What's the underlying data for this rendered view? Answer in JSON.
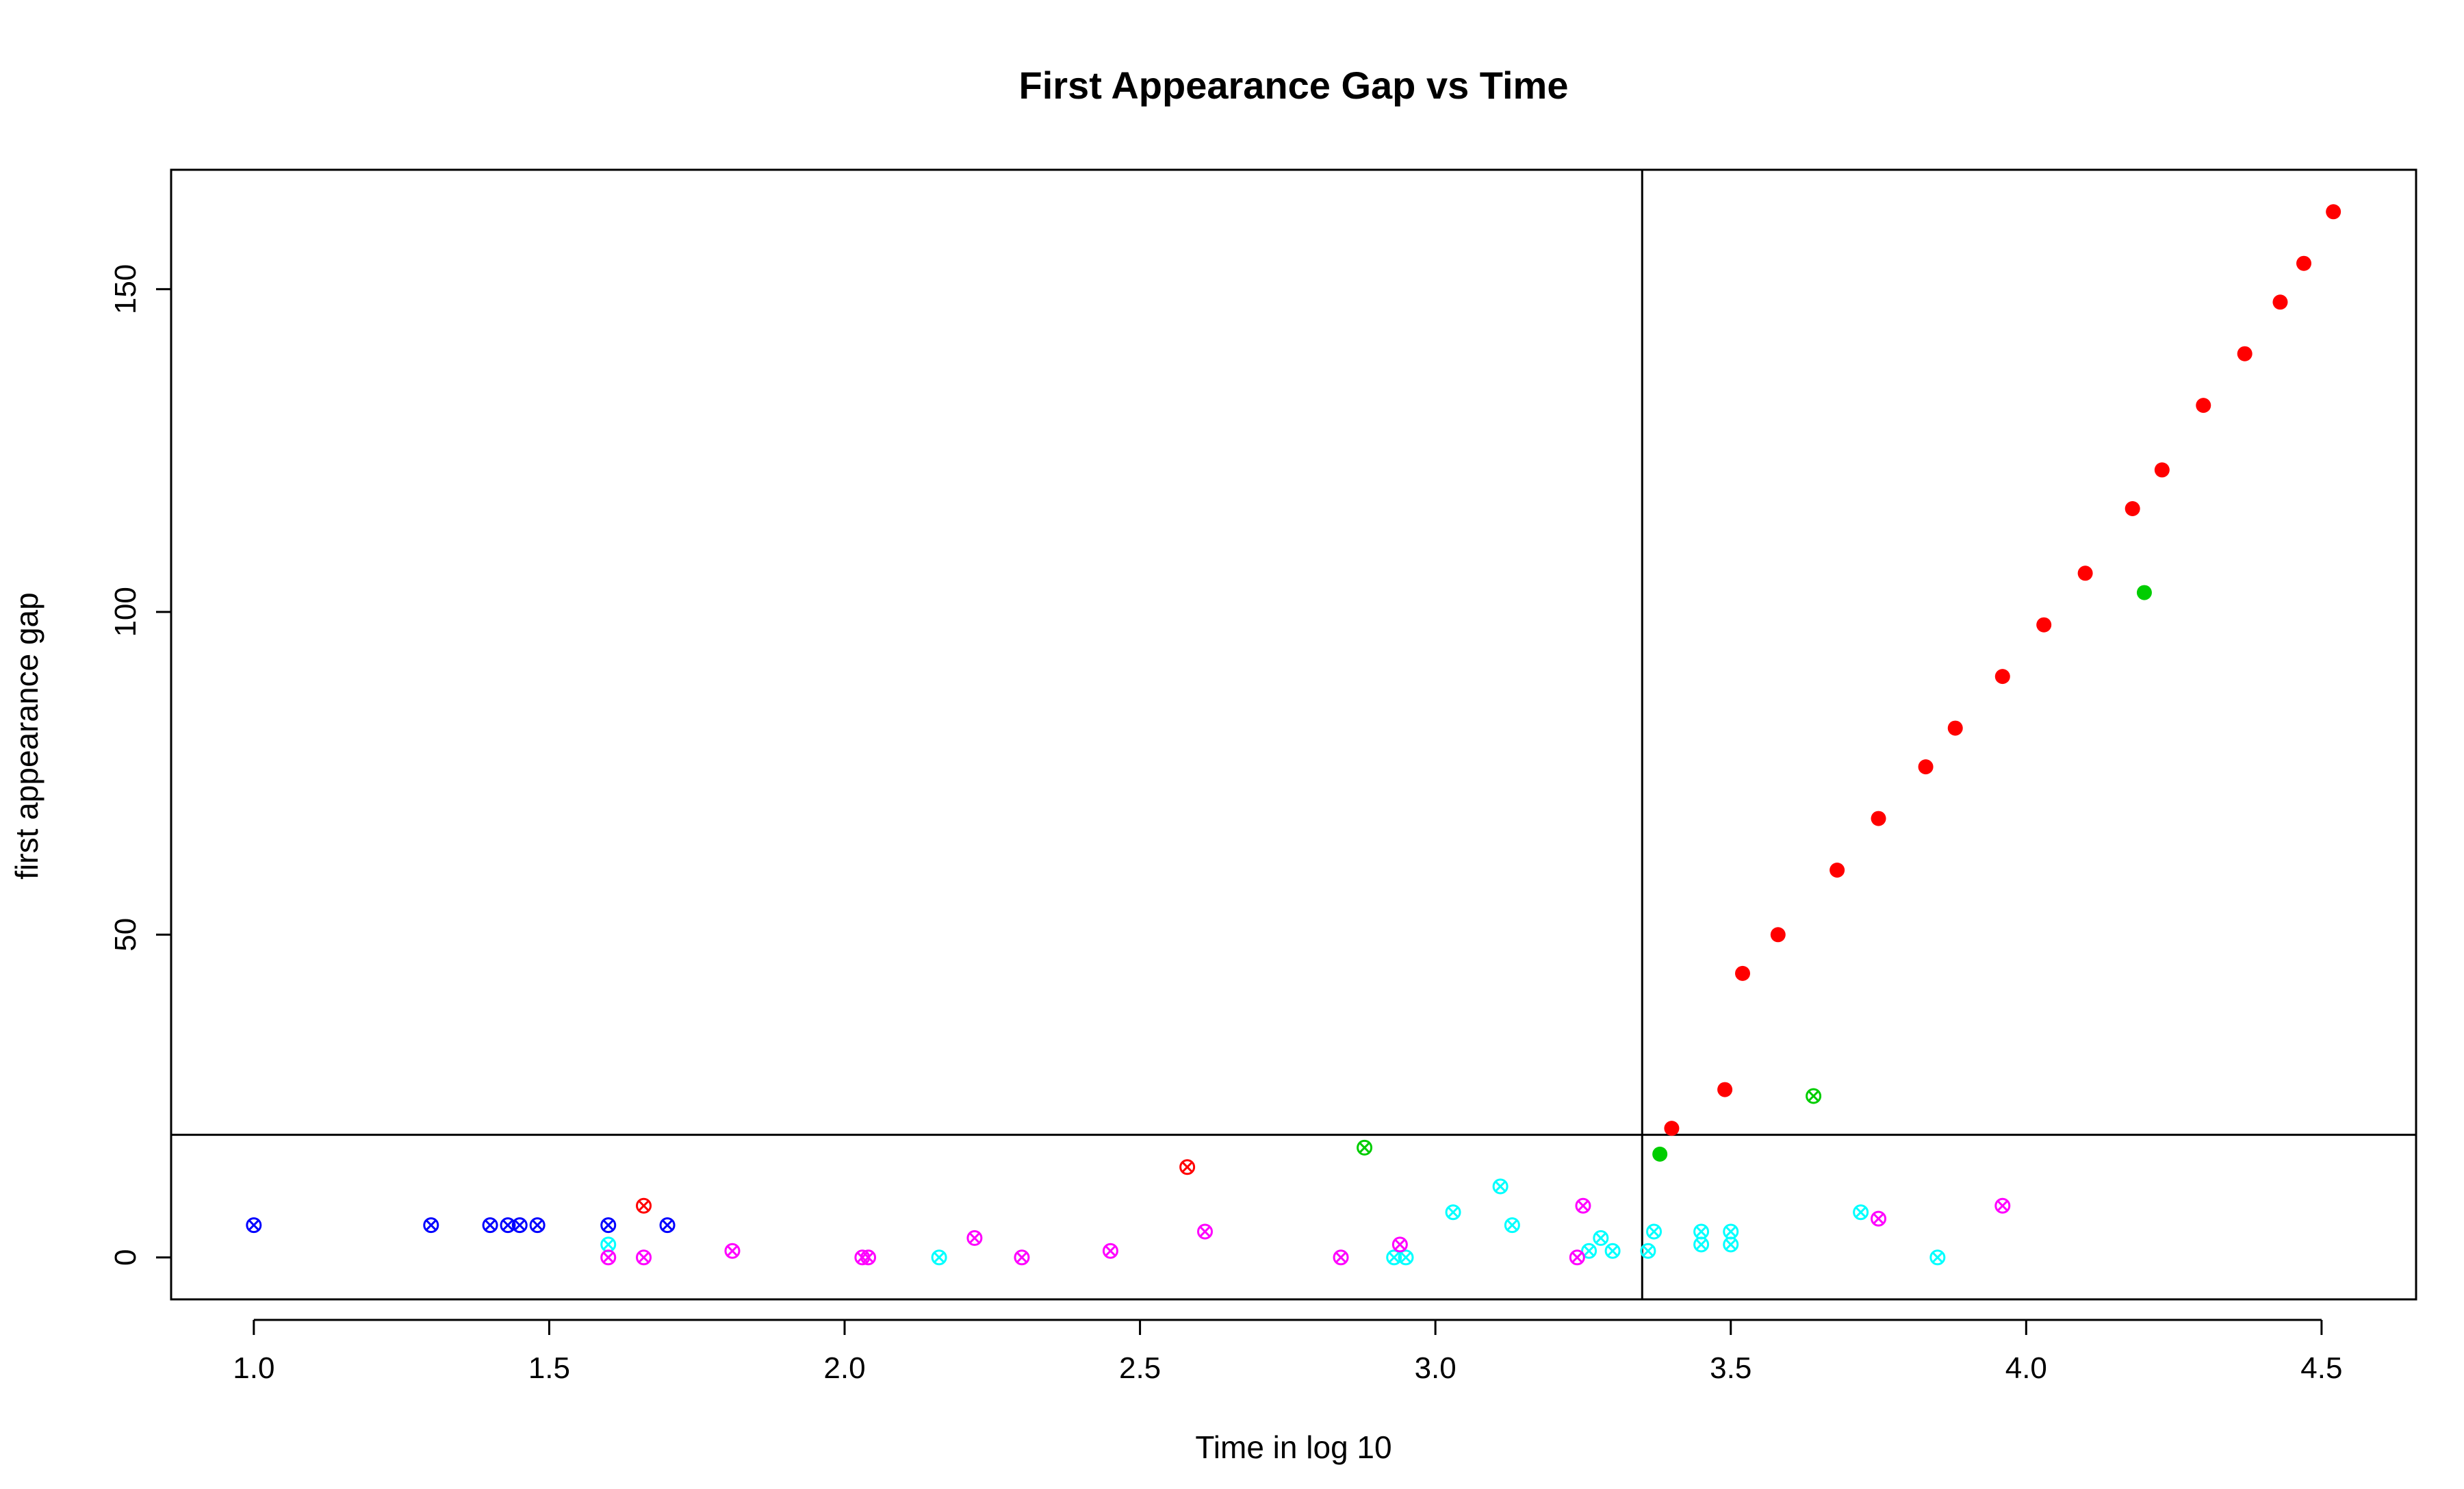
{
  "chart_data": {
    "type": "scatter",
    "title": "First Appearance Gap vs Time",
    "xlabel": "Time in log 10",
    "ylabel": "first appearance gap",
    "xlim": [
      0.86,
      4.66
    ],
    "ylim": [
      -6.5,
      168.5
    ],
    "xticks": [
      1.0,
      1.5,
      2.0,
      2.5,
      3.0,
      3.5,
      4.0,
      4.5
    ],
    "xtick_labels": [
      "1.0",
      "1.5",
      "2.0",
      "2.5",
      "3.0",
      "3.5",
      "4.0",
      "4.5"
    ],
    "yticks": [
      0,
      50,
      100,
      150
    ],
    "ytick_labels": [
      "0",
      "50",
      "100",
      "150"
    ],
    "grid": false,
    "legend": "none",
    "reference_lines": {
      "vertical_x": 3.35,
      "horizontal_y": 19
    },
    "colors": {
      "red": "#ff0000",
      "green": "#00cd00",
      "blue": "#0000ff",
      "cyan": "#00ffff",
      "magenta": "#ff00ff"
    },
    "marker_types": {
      "filled": "filled circle",
      "crossed": "circle with x"
    },
    "series": [
      {
        "color": "red",
        "marker": "filled",
        "points": [
          [
            3.4,
            20
          ],
          [
            3.49,
            26
          ],
          [
            3.52,
            44
          ],
          [
            3.58,
            50
          ],
          [
            3.68,
            60
          ],
          [
            3.75,
            68
          ],
          [
            3.83,
            76
          ],
          [
            3.88,
            82
          ],
          [
            3.96,
            90
          ],
          [
            4.03,
            98
          ],
          [
            4.1,
            106
          ],
          [
            4.18,
            116
          ],
          [
            4.23,
            122
          ],
          [
            4.3,
            132
          ],
          [
            4.37,
            140
          ],
          [
            4.43,
            148
          ],
          [
            4.47,
            154
          ],
          [
            4.52,
            162
          ]
        ]
      },
      {
        "color": "green",
        "marker": "filled",
        "points": [
          [
            3.38,
            16
          ],
          [
            4.2,
            103
          ]
        ]
      },
      {
        "color": "red",
        "marker": "crossed",
        "points": [
          [
            1.66,
            8
          ],
          [
            2.58,
            14
          ]
        ]
      },
      {
        "color": "green",
        "marker": "crossed",
        "points": [
          [
            2.88,
            17
          ],
          [
            3.64,
            25
          ]
        ]
      },
      {
        "color": "blue",
        "marker": "crossed",
        "points": [
          [
            1.0,
            5
          ],
          [
            1.3,
            5
          ],
          [
            1.4,
            5
          ],
          [
            1.43,
            5
          ],
          [
            1.45,
            5
          ],
          [
            1.48,
            5
          ],
          [
            1.6,
            5
          ],
          [
            1.7,
            5
          ]
        ]
      },
      {
        "color": "cyan",
        "marker": "crossed",
        "points": [
          [
            1.6,
            2
          ],
          [
            2.16,
            0
          ],
          [
            2.93,
            0
          ],
          [
            2.95,
            0
          ],
          [
            3.03,
            7
          ],
          [
            3.11,
            11
          ],
          [
            3.13,
            5
          ],
          [
            3.26,
            1
          ],
          [
            3.28,
            3
          ],
          [
            3.3,
            1
          ],
          [
            3.36,
            1
          ],
          [
            3.37,
            4
          ],
          [
            3.45,
            2
          ],
          [
            3.45,
            4
          ],
          [
            3.5,
            2
          ],
          [
            3.5,
            4
          ],
          [
            3.72,
            7
          ],
          [
            3.85,
            0
          ]
        ]
      },
      {
        "color": "magenta",
        "marker": "crossed",
        "points": [
          [
            1.6,
            0
          ],
          [
            1.66,
            0
          ],
          [
            1.81,
            1
          ],
          [
            2.03,
            0
          ],
          [
            2.04,
            0
          ],
          [
            2.22,
            3
          ],
          [
            2.3,
            0
          ],
          [
            2.45,
            1
          ],
          [
            2.61,
            4
          ],
          [
            2.84,
            0
          ],
          [
            2.94,
            2
          ],
          [
            3.24,
            0
          ],
          [
            3.25,
            8
          ],
          [
            3.75,
            6
          ],
          [
            3.96,
            8
          ]
        ]
      }
    ]
  }
}
